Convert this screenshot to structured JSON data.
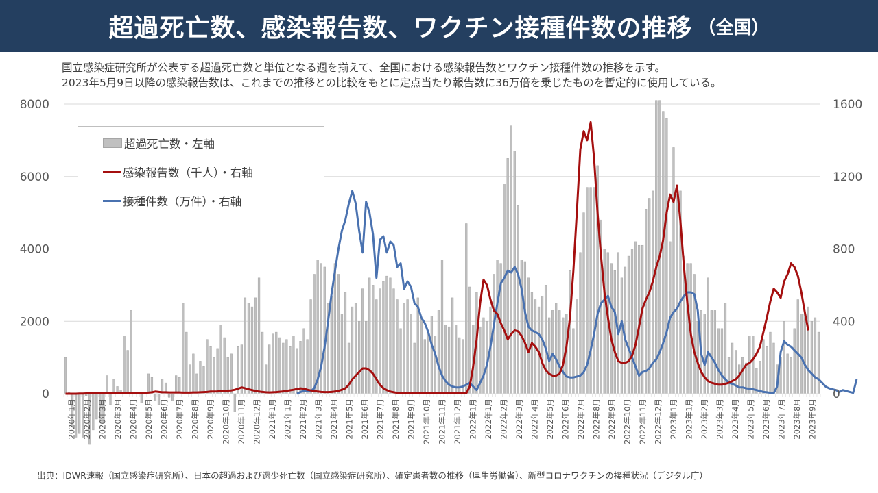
{
  "header": {
    "title": "超過死亡数、感染報告数、ワクチン接種件数の推移",
    "subtitle": "（全国）"
  },
  "description": {
    "line1": "国立感染症研究所が公表する超過死亡数と単位となる週を揃えて、全国における感染報告数とワクチン接種件数の推移を示す。",
    "line2": "2023年5月9日以降の感染報告数は、これまでの推移との比較をもとに定点当たり報告数に36万倍を乗じたものを暫定的に使用している。"
  },
  "source": "出典：IDWR速報（国立感染症研究所）、日本の超過および過少死亡数（国立感染症研究所）、確定患者数の推移（厚生労働省）、新型コロナワクチンの接種状況（デジタル庁）",
  "colors": {
    "header_bg": "#243f60",
    "bar_fill": "#c0c0c0",
    "bar_stroke": "#a6a6a6",
    "infection_line": "#a50f0f",
    "vaccine_line": "#4a72b0",
    "grid": "#d9d9d9"
  },
  "chart_data": {
    "type": "bar+line",
    "title": "超過死亡数、感染報告数、ワクチン接種件数の推移（全国）",
    "xlabel": "",
    "ylabel_left": "超過死亡数",
    "ylabel_right": "感染報告数（千人）／接種件数（万件）",
    "ylim_left": [
      0,
      8000
    ],
    "ylim_right": [
      0,
      1600
    ],
    "yticks_left": [
      "0",
      "2000",
      "4000",
      "6000",
      "8000"
    ],
    "yticks_right": [
      "0",
      "400",
      "800",
      "1200",
      "1600"
    ],
    "grid": true,
    "legend_position": "top-left",
    "legend": [
      {
        "label": "超過死亡数・左軸",
        "kind": "bar"
      },
      {
        "label": "感染報告数（千人）・右軸",
        "kind": "line"
      },
      {
        "label": "接種件数（万件）・右軸",
        "kind": "line"
      }
    ],
    "x_tick_labels": [
      "2020年1月",
      "2020年2月",
      "2020年3月",
      "2020年3月",
      "2020年4月",
      "2020年5月",
      "2020年6月",
      "2020年7月",
      "2020年8月",
      "2020年9月",
      "2020年10月",
      "2020年11月",
      "2020年12月",
      "2021年1月",
      "2021年1月",
      "2021年2月",
      "2021年3月",
      "2021年4月",
      "2021年5月",
      "2021年6月",
      "2021年7月",
      "2021年8月",
      "2021年9月",
      "2021年10月",
      "2021年11月",
      "2021年12月",
      "2022年1月",
      "2022年1月",
      "2022年2月",
      "2022年3月",
      "2022年4月",
      "2022年5月",
      "2022年6月",
      "2022年7月",
      "2022年8月",
      "2022年9月",
      "2022年10月",
      "2022年11月",
      "2022年12月",
      "2023年1月",
      "2023年1月",
      "2023年2月",
      "2023年3月",
      "2023年4月",
      "2023年5月",
      "2023年6月",
      "2023年7月",
      "2023年8月",
      "2023年9月"
    ],
    "series": [
      {
        "name": "超過死亡数・左軸",
        "axis": "left",
        "type": "bar",
        "values": [
          1000,
          50,
          -900,
          -1200,
          -1100,
          -1200,
          -50,
          -1400,
          -1000,
          -700,
          -800,
          -800,
          500,
          -300,
          400,
          200,
          100,
          1600,
          1200,
          2300,
          50,
          0,
          -250,
          0,
          550,
          450,
          -200,
          -300,
          400,
          300,
          -100,
          -200,
          500,
          450,
          2500,
          1700,
          800,
          1100,
          550,
          900,
          750,
          1500,
          1300,
          1000,
          1250,
          1900,
          1550,
          1000,
          1100,
          -500,
          1300,
          1350,
          2650,
          2500,
          2400,
          2650,
          3200,
          1700,
          800,
          1350,
          1650,
          1700,
          1550,
          1400,
          1500,
          1300,
          1600,
          1250,
          1450,
          1800,
          1500,
          2600,
          3300,
          3700,
          3600,
          3500,
          2500,
          2700,
          3600,
          3300,
          2200,
          2800,
          1400,
          2400,
          2500,
          2000,
          2900,
          2000,
          3200,
          3000,
          2600,
          2900,
          3100,
          3250,
          3200,
          2900,
          2600,
          1800,
          2500,
          2600,
          2200,
          1400,
          2650,
          2100,
          1500,
          1750,
          2150,
          1600,
          2300,
          3700,
          1900,
          1850,
          2650,
          1900,
          1550,
          1500,
          4700,
          2950,
          1900,
          2800,
          1850,
          2100,
          2000,
          2400,
          3300,
          3700,
          3600,
          5800,
          6500,
          7400,
          6700,
          5200,
          3700,
          3650,
          3200,
          2800,
          2600,
          2400,
          2700,
          3000,
          2100,
          2300,
          2500,
          2300,
          2100,
          2200,
          3400,
          1800,
          2600,
          3900,
          5000,
          5700,
          5700,
          5700,
          6300,
          4800,
          4000,
          3900,
          3600,
          3400,
          3900,
          3200,
          3500,
          3800,
          4000,
          4200,
          4100,
          4100,
          5100,
          5400,
          5600,
          8100,
          8100,
          7800,
          7600,
          4200,
          6800,
          5500,
          5600,
          3800,
          3600,
          3600,
          3300,
          2000,
          2300,
          2200,
          3200,
          2300,
          2300,
          1800,
          1800,
          2500,
          1000,
          1400,
          1200,
          800,
          1000,
          850,
          1600,
          1600,
          700,
          900,
          1500,
          1300,
          1700,
          1400,
          800,
          1000,
          2000,
          1100,
          1000,
          1800,
          2600,
          2200,
          2200,
          2400,
          2000,
          2100,
          1700
        ]
      },
      {
        "name": "感染報告数（千人）・右軸",
        "axis": "right",
        "type": "line",
        "values": [
          0,
          0,
          0,
          0,
          1,
          1,
          2,
          3,
          4,
          5,
          5,
          5,
          4,
          3,
          3,
          3,
          3,
          3,
          3,
          3,
          3,
          4,
          4,
          5,
          6,
          8,
          12,
          10,
          8,
          8,
          7,
          7,
          7,
          7,
          6,
          6,
          6,
          7,
          7,
          8,
          9,
          10,
          12,
          12,
          13,
          15,
          16,
          17,
          18,
          22,
          28,
          35,
          30,
          25,
          20,
          15,
          12,
          10,
          8,
          7,
          8,
          9,
          11,
          13,
          16,
          19,
          22,
          26,
          30,
          28,
          22,
          18,
          15,
          12,
          10,
          9,
          9,
          10,
          12,
          16,
          22,
          30,
          50,
          80,
          100,
          120,
          140,
          140,
          130,
          110,
          80,
          50,
          30,
          20,
          12,
          8,
          5,
          3,
          2,
          2,
          2,
          2,
          2,
          2,
          2,
          2,
          2,
          2,
          2,
          2,
          2,
          2,
          2,
          2,
          2,
          2,
          2,
          40,
          150,
          300,
          500,
          630,
          600,
          520,
          460,
          440,
          390,
          350,
          300,
          330,
          350,
          345,
          320,
          280,
          230,
          280,
          260,
          230,
          170,
          130,
          110,
          100,
          100,
          110,
          160,
          260,
          420,
          680,
          1000,
          1350,
          1450,
          1400,
          1500,
          1300,
          1000,
          760,
          560,
          420,
          300,
          230,
          180,
          170,
          170,
          180,
          210,
          270,
          370,
          470,
          520,
          560,
          620,
          700,
          760,
          850,
          1000,
          1100,
          1060,
          1150,
          950,
          700,
          500,
          330,
          230,
          170,
          120,
          90,
          70,
          60,
          55,
          50,
          50,
          55,
          60,
          70,
          80,
          100,
          130,
          160,
          170,
          190,
          220,
          260,
          340,
          420,
          510,
          580,
          560,
          530,
          620,
          660,
          720,
          700,
          650,
          560,
          450,
          350
        ]
      },
      {
        "name": "接種件数（万件）・右軸",
        "axis": "right",
        "type": "line",
        "values": [
          null,
          null,
          null,
          null,
          null,
          null,
          null,
          null,
          null,
          null,
          null,
          null,
          null,
          null,
          null,
          null,
          null,
          null,
          null,
          null,
          null,
          null,
          null,
          null,
          null,
          null,
          null,
          null,
          null,
          null,
          null,
          null,
          null,
          null,
          null,
          null,
          null,
          null,
          null,
          null,
          null,
          null,
          null,
          null,
          null,
          null,
          null,
          null,
          null,
          null,
          null,
          null,
          null,
          null,
          null,
          null,
          null,
          null,
          null,
          null,
          null,
          null,
          null,
          null,
          null,
          null,
          null,
          0,
          10,
          15,
          15,
          15,
          30,
          80,
          150,
          260,
          400,
          550,
          680,
          800,
          900,
          960,
          1050,
          1120,
          1050,
          900,
          780,
          1060,
          1000,
          880,
          640,
          850,
          870,
          780,
          840,
          820,
          700,
          720,
          580,
          620,
          590,
          500,
          480,
          420,
          390,
          340,
          270,
          220,
          150,
          100,
          70,
          50,
          40,
          35,
          35,
          40,
          50,
          60,
          40,
          20,
          60,
          100,
          160,
          260,
          380,
          500,
          610,
          640,
          680,
          670,
          700,
          660,
          580,
          450,
          370,
          350,
          340,
          330,
          300,
          250,
          180,
          220,
          190,
          150,
          120,
          95,
          90,
          90,
          95,
          100,
          120,
          160,
          240,
          330,
          440,
          500,
          520,
          540,
          480,
          450,
          330,
          400,
          300,
          250,
          200,
          150,
          100,
          120,
          125,
          140,
          170,
          190,
          230,
          280,
          340,
          420,
          450,
          470,
          510,
          540,
          560,
          560,
          550,
          460,
          220,
          160,
          230,
          200,
          170,
          130,
          100,
          80,
          60,
          55,
          45,
          35,
          35,
          30,
          28,
          25,
          20,
          15,
          10,
          8,
          5,
          3,
          40,
          230,
          290,
          270,
          260,
          240,
          220,
          200,
          160,
          130,
          110,
          90,
          80,
          60,
          40,
          30,
          25,
          20,
          10,
          20,
          15,
          10,
          5,
          80
        ]
      }
    ]
  }
}
